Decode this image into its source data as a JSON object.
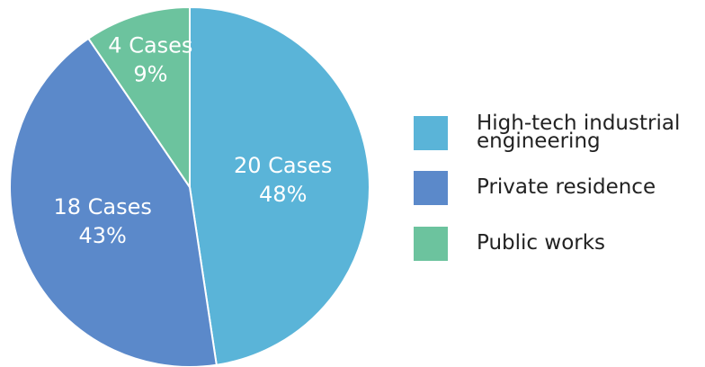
{
  "chart_data": {
    "type": "pie",
    "categories": [
      "High-tech industrial engineering",
      "Private residence",
      "Public works"
    ],
    "values": [
      20,
      18,
      4
    ],
    "value_labels": [
      "20 Cases",
      "18 Cases",
      "4 Cases"
    ],
    "percents": [
      48,
      43,
      9
    ],
    "percent_labels": [
      "48%",
      "43%",
      "9%"
    ],
    "colors": [
      "#5ab4d8",
      "#5b89ca",
      "#6cc39e"
    ],
    "legend": "right"
  }
}
